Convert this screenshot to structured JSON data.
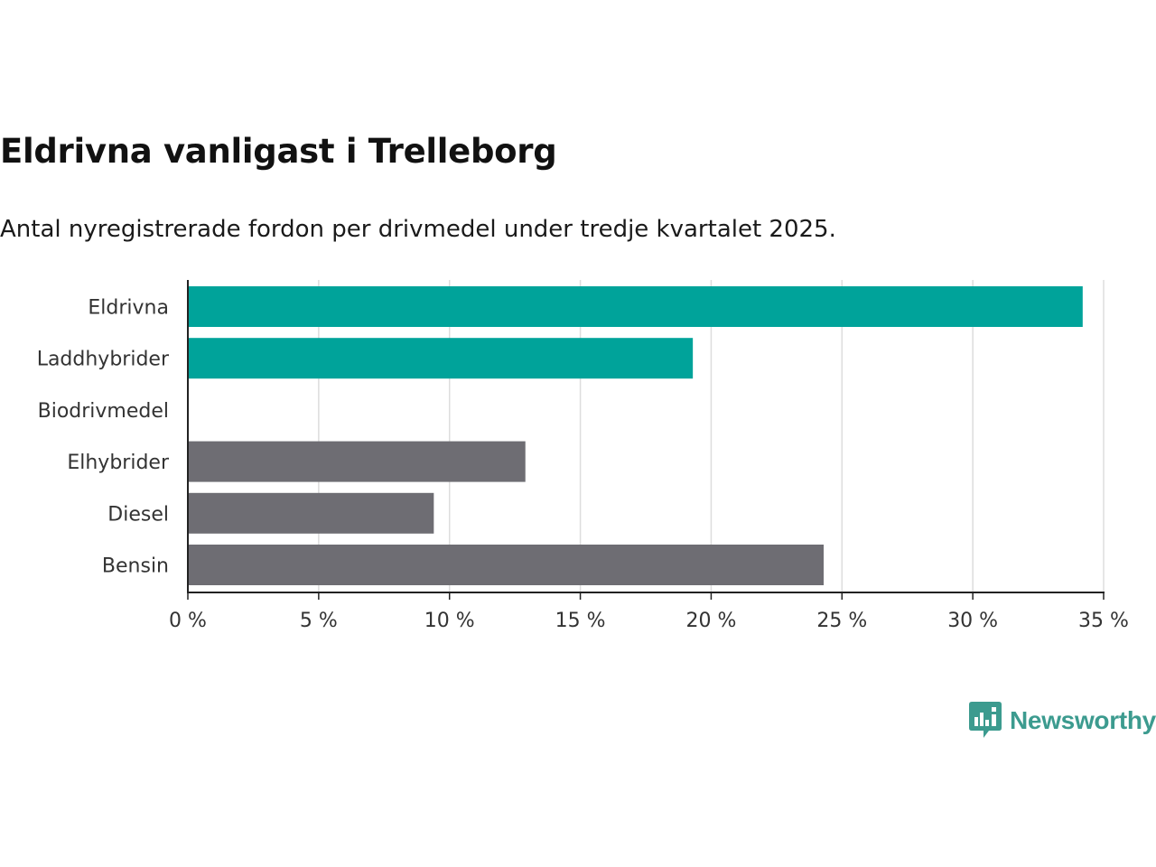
{
  "colors": {
    "highlight": "#00a39a",
    "default": "#6e6d73",
    "grid": "#dddddd",
    "axis": "#222222",
    "logo": "#3c9b8f"
  },
  "chart_data": {
    "type": "bar",
    "orientation": "horizontal",
    "title": "Eldrivna vanligast i Trelleborg",
    "subtitle": "Antal nyregistrerade fordon per drivmedel under tredje kvartalet 2025.",
    "categories": [
      "Eldrivna",
      "Laddhybrider",
      "Biodrivmedel",
      "Elhybrider",
      "Diesel",
      "Bensin"
    ],
    "values": [
      34.2,
      19.3,
      0,
      12.9,
      9.4,
      24.3
    ],
    "highlighted": [
      true,
      true,
      false,
      false,
      false,
      false
    ],
    "xlim": [
      0,
      35
    ],
    "xticks": [
      0,
      5,
      10,
      15,
      20,
      25,
      30,
      35
    ],
    "tick_labels": [
      "0 %",
      "5 %",
      "10 %",
      "15 %",
      "20 %",
      "25 %",
      "30 %",
      "35 %"
    ],
    "xlabel": "",
    "ylabel": "",
    "grid": true
  },
  "logo": {
    "name": "Newsworthy",
    "icon": "bar-chart-bubble-icon"
  }
}
